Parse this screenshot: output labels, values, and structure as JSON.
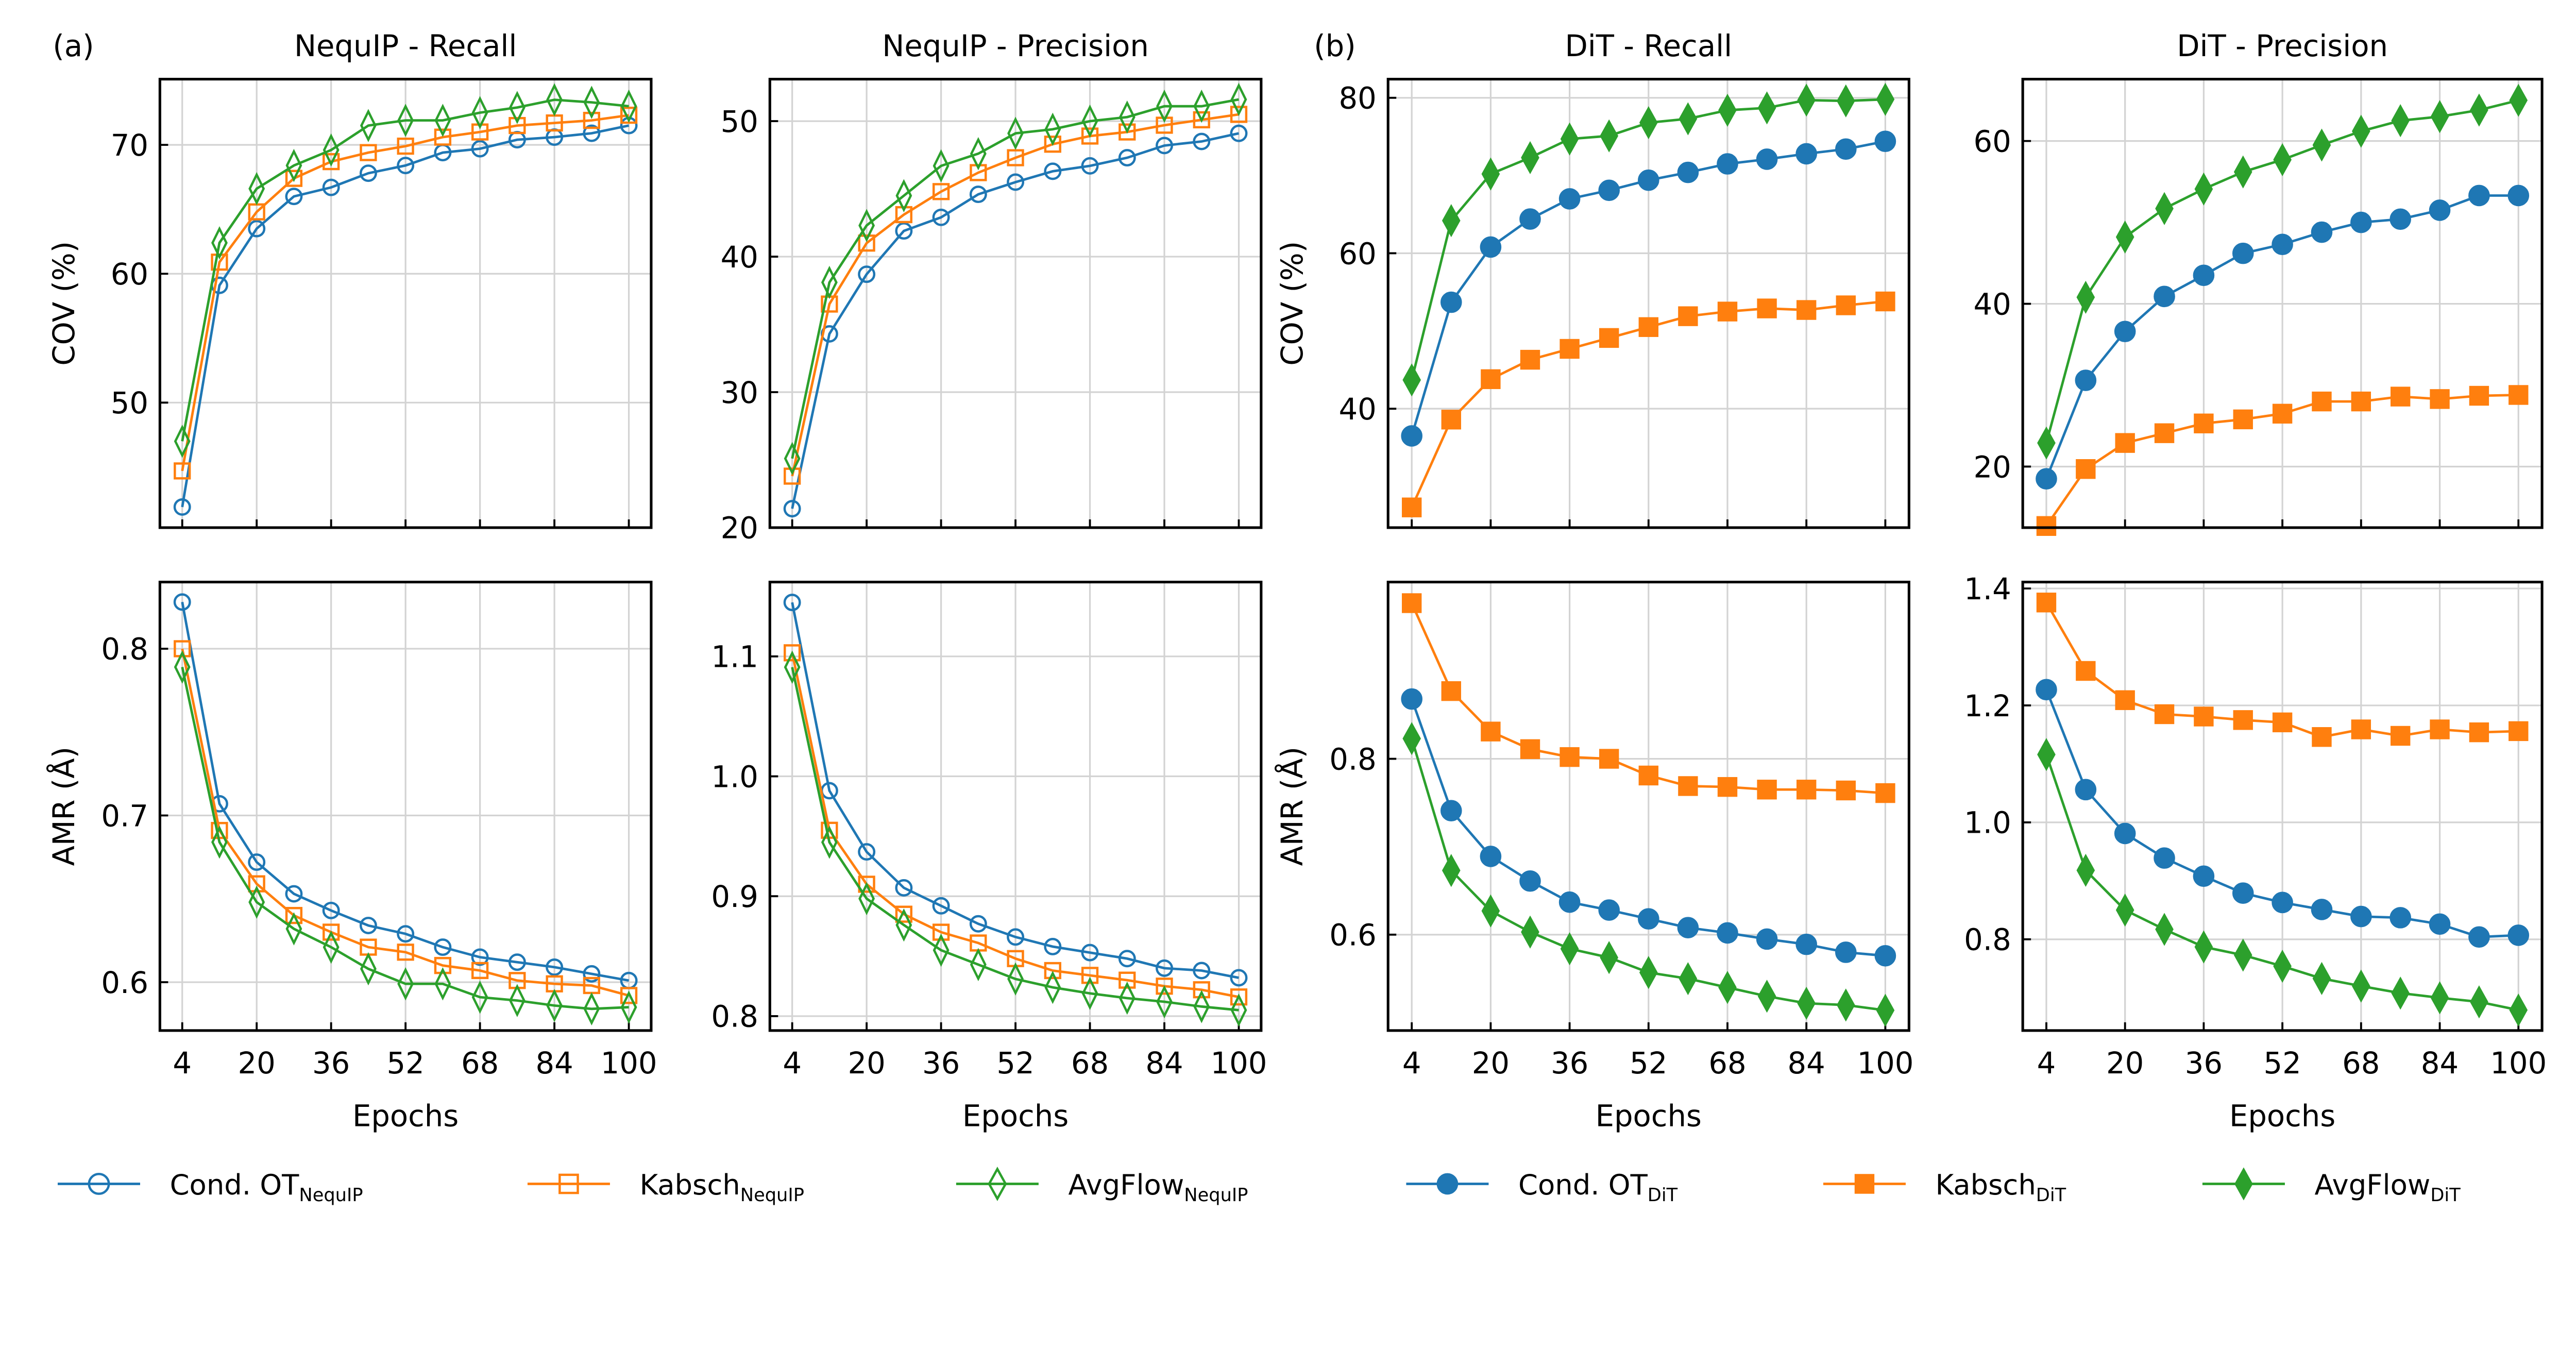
{
  "figure": {
    "panel_labels": [
      "(a)",
      "(b)"
    ],
    "colors": {
      "cond_ot": "#1f77b4",
      "kabsch": "#ff7f0e",
      "avgflow": "#2ca02c",
      "grid": "#d3d3d3"
    }
  },
  "legend": {
    "placement": "bottom",
    "entries": [
      {
        "label": "Cond. OT",
        "subscript": "NequIP",
        "color": "#1f77b4",
        "marker": "circle",
        "filled": false
      },
      {
        "label": "Kabsch",
        "subscript": "NequIP",
        "color": "#ff7f0e",
        "marker": "square",
        "filled": false
      },
      {
        "label": "AvgFlow",
        "subscript": "NequIP",
        "color": "#2ca02c",
        "marker": "thin-diamond",
        "filled": false
      },
      {
        "label": "Cond. OT",
        "subscript": "DiT",
        "color": "#1f77b4",
        "marker": "circle",
        "filled": true
      },
      {
        "label": "Kabsch",
        "subscript": "DiT",
        "color": "#ff7f0e",
        "marker": "square",
        "filled": true
      },
      {
        "label": "AvgFlow",
        "subscript": "DiT",
        "color": "#2ca02c",
        "marker": "thin-diamond",
        "filled": true
      }
    ]
  },
  "chart_data": [
    {
      "type": "line",
      "title": "NequIP - Recall",
      "xlabel": "",
      "ylabel": "COV (%)",
      "grid": true,
      "x": [
        4,
        12,
        20,
        28,
        36,
        44,
        52,
        60,
        68,
        76,
        84,
        92,
        100
      ],
      "xticks": [
        "4",
        "20",
        "36",
        "52",
        "68",
        "84",
        "100"
      ],
      "show_xticklabels": false,
      "yticks": [
        "50",
        "60",
        "70"
      ],
      "ylim": [
        40.3,
        75.1
      ],
      "filled": false,
      "series": [
        {
          "legend": 0,
          "values": [
            41.9,
            59.1,
            63.5,
            66.0,
            66.7,
            67.8,
            68.4,
            69.4,
            69.7,
            70.4,
            70.6,
            70.9,
            71.5
          ]
        },
        {
          "legend": 1,
          "values": [
            44.7,
            60.9,
            64.8,
            67.4,
            68.7,
            69.4,
            69.9,
            70.6,
            71.0,
            71.5,
            71.7,
            71.9,
            72.3
          ]
        },
        {
          "legend": 2,
          "values": [
            47.0,
            62.4,
            66.6,
            68.4,
            69.6,
            71.5,
            71.9,
            71.9,
            72.5,
            72.9,
            73.5,
            73.3,
            73.0
          ]
        }
      ]
    },
    {
      "type": "line",
      "title": "NequIP - Precision",
      "xlabel": "",
      "ylabel": "",
      "grid": true,
      "x": [
        4,
        12,
        20,
        28,
        36,
        44,
        52,
        60,
        68,
        76,
        84,
        92,
        100
      ],
      "xticks": [
        "4",
        "20",
        "36",
        "52",
        "68",
        "84",
        "100"
      ],
      "show_xticklabels": false,
      "yticks": [
        "20",
        "30",
        "40",
        "50"
      ],
      "ylim": [
        20,
        53.1
      ],
      "filled": false,
      "series": [
        {
          "legend": 0,
          "values": [
            21.4,
            34.3,
            38.7,
            41.9,
            42.9,
            44.6,
            45.5,
            46.3,
            46.7,
            47.3,
            48.2,
            48.5,
            49.1
          ]
        },
        {
          "legend": 1,
          "values": [
            23.8,
            36.5,
            41.0,
            43.1,
            44.8,
            46.2,
            47.3,
            48.3,
            48.9,
            49.2,
            49.7,
            50.1,
            50.5
          ]
        },
        {
          "legend": 2,
          "values": [
            25.1,
            38.1,
            42.3,
            44.5,
            46.7,
            47.6,
            49.1,
            49.4,
            50.0,
            50.3,
            51.1,
            51.1,
            51.6
          ]
        }
      ]
    },
    {
      "type": "line",
      "title": "DiT - Recall",
      "xlabel": "",
      "ylabel": "COV (%)",
      "grid": true,
      "x": [
        4,
        12,
        20,
        28,
        36,
        44,
        52,
        60,
        68,
        76,
        84,
        92,
        100
      ],
      "xticks": [
        "4",
        "20",
        "36",
        "52",
        "68",
        "84",
        "100"
      ],
      "show_xticklabels": false,
      "yticks": [
        "40",
        "60",
        "80"
      ],
      "ylim": [
        24.7,
        82.4
      ],
      "filled": true,
      "series": [
        {
          "legend": 3,
          "values": [
            36.5,
            53.7,
            60.8,
            64.4,
            67.0,
            68.1,
            69.4,
            70.4,
            71.5,
            72.1,
            72.8,
            73.4,
            74.4
          ]
        },
        {
          "legend": 4,
          "values": [
            27.3,
            38.6,
            43.8,
            46.3,
            47.7,
            49.1,
            50.5,
            51.9,
            52.5,
            52.9,
            52.7,
            53.3,
            53.8
          ]
        },
        {
          "legend": 5,
          "values": [
            43.7,
            64.2,
            70.2,
            72.3,
            74.7,
            75.1,
            76.8,
            77.3,
            78.4,
            78.7,
            79.7,
            79.6,
            79.8
          ]
        }
      ]
    },
    {
      "type": "line",
      "title": "DiT - Precision",
      "xlabel": "",
      "ylabel": "",
      "grid": true,
      "x": [
        4,
        12,
        20,
        28,
        36,
        44,
        52,
        60,
        68,
        76,
        84,
        92,
        100
      ],
      "xticks": [
        "4",
        "20",
        "36",
        "52",
        "68",
        "84",
        "100"
      ],
      "show_xticklabels": false,
      "yticks": [
        "20",
        "40",
        "60"
      ],
      "ylim": [
        12.5,
        67.6
      ],
      "filled": true,
      "series": [
        {
          "legend": 3,
          "values": [
            18.5,
            30.6,
            36.6,
            40.9,
            43.5,
            46.2,
            47.3,
            48.8,
            50.0,
            50.4,
            51.5,
            53.3,
            53.3
          ]
        },
        {
          "legend": 4,
          "values": [
            12.7,
            19.7,
            22.9,
            24.1,
            25.3,
            25.8,
            26.5,
            28.0,
            28.0,
            28.6,
            28.3,
            28.7,
            28.8
          ]
        },
        {
          "legend": 5,
          "values": [
            22.9,
            40.8,
            48.2,
            51.7,
            54.1,
            56.2,
            57.7,
            59.5,
            61.2,
            62.5,
            63.0,
            63.8,
            65.0
          ]
        }
      ]
    },
    {
      "type": "line",
      "title": "",
      "xlabel": "Epochs",
      "ylabel": "AMR (Å)",
      "grid": true,
      "x": [
        4,
        12,
        20,
        28,
        36,
        44,
        52,
        60,
        68,
        76,
        84,
        92,
        100
      ],
      "xticks": [
        "4",
        "20",
        "36",
        "52",
        "68",
        "84",
        "100"
      ],
      "show_xticklabels": true,
      "yticks": [
        "0.6",
        "0.7",
        "0.8"
      ],
      "ylim": [
        0.571,
        0.84
      ],
      "filled": false,
      "series": [
        {
          "legend": 0,
          "values": [
            0.828,
            0.707,
            0.672,
            0.653,
            0.643,
            0.634,
            0.629,
            0.621,
            0.615,
            0.612,
            0.609,
            0.605,
            0.601
          ]
        },
        {
          "legend": 1,
          "values": [
            0.8,
            0.691,
            0.659,
            0.64,
            0.63,
            0.621,
            0.618,
            0.61,
            0.607,
            0.601,
            0.599,
            0.598,
            0.592
          ]
        },
        {
          "legend": 2,
          "values": [
            0.789,
            0.684,
            0.648,
            0.632,
            0.621,
            0.608,
            0.599,
            0.599,
            0.591,
            0.589,
            0.586,
            0.584,
            0.585
          ]
        }
      ]
    },
    {
      "type": "line",
      "title": "",
      "xlabel": "Epochs",
      "ylabel": "",
      "grid": true,
      "x": [
        4,
        12,
        20,
        28,
        36,
        44,
        52,
        60,
        68,
        76,
        84,
        92,
        100
      ],
      "xticks": [
        "4",
        "20",
        "36",
        "52",
        "68",
        "84",
        "100"
      ],
      "show_xticklabels": true,
      "yticks": [
        "0.8",
        "0.9",
        "1.0",
        "1.1"
      ],
      "ylim": [
        0.788,
        1.162
      ],
      "filled": false,
      "series": [
        {
          "legend": 0,
          "values": [
            1.145,
            0.988,
            0.937,
            0.907,
            0.892,
            0.877,
            0.866,
            0.858,
            0.853,
            0.848,
            0.84,
            0.838,
            0.832
          ]
        },
        {
          "legend": 1,
          "values": [
            1.103,
            0.955,
            0.91,
            0.885,
            0.87,
            0.861,
            0.848,
            0.838,
            0.834,
            0.83,
            0.825,
            0.822,
            0.816
          ]
        },
        {
          "legend": 2,
          "values": [
            1.091,
            0.945,
            0.898,
            0.876,
            0.855,
            0.843,
            0.831,
            0.824,
            0.819,
            0.815,
            0.812,
            0.808,
            0.805
          ]
        }
      ]
    },
    {
      "type": "line",
      "title": "",
      "xlabel": "Epochs",
      "ylabel": "AMR (Å)",
      "grid": true,
      "x": [
        4,
        12,
        20,
        28,
        36,
        44,
        52,
        60,
        68,
        76,
        84,
        92,
        100
      ],
      "xticks": [
        "4",
        "20",
        "36",
        "52",
        "68",
        "84",
        "100"
      ],
      "show_xticklabels": true,
      "yticks": [
        "0.6",
        "0.8"
      ],
      "ylim": [
        0.491,
        1.001
      ],
      "filled": true,
      "series": [
        {
          "legend": 3,
          "values": [
            0.868,
            0.741,
            0.689,
            0.661,
            0.637,
            0.628,
            0.618,
            0.608,
            0.602,
            0.595,
            0.589,
            0.58,
            0.576
          ]
        },
        {
          "legend": 4,
          "values": [
            0.977,
            0.877,
            0.831,
            0.811,
            0.802,
            0.8,
            0.781,
            0.769,
            0.768,
            0.765,
            0.765,
            0.764,
            0.761
          ]
        },
        {
          "legend": 5,
          "values": [
            0.823,
            0.673,
            0.627,
            0.603,
            0.584,
            0.574,
            0.557,
            0.55,
            0.54,
            0.53,
            0.522,
            0.52,
            0.514
          ]
        }
      ]
    },
    {
      "type": "line",
      "title": "",
      "xlabel": "Epochs",
      "ylabel": "",
      "grid": true,
      "x": [
        4,
        12,
        20,
        28,
        36,
        44,
        52,
        60,
        68,
        76,
        84,
        92,
        100
      ],
      "xticks": [
        "4",
        "20",
        "36",
        "52",
        "68",
        "84",
        "100"
      ],
      "show_xticklabels": true,
      "yticks": [
        "0.8",
        "1.0",
        "1.2",
        "1.4"
      ],
      "ylim": [
        0.644,
        1.411
      ],
      "filled": true,
      "series": [
        {
          "legend": 3,
          "values": [
            1.227,
            1.056,
            0.981,
            0.939,
            0.908,
            0.879,
            0.863,
            0.851,
            0.839,
            0.837,
            0.826,
            0.804,
            0.807
          ]
        },
        {
          "legend": 4,
          "values": [
            1.376,
            1.259,
            1.209,
            1.185,
            1.181,
            1.175,
            1.171,
            1.146,
            1.159,
            1.148,
            1.159,
            1.154,
            1.156
          ]
        },
        {
          "legend": 5,
          "values": [
            1.116,
            0.918,
            0.85,
            0.817,
            0.787,
            0.773,
            0.754,
            0.733,
            0.72,
            0.708,
            0.7,
            0.693,
            0.679
          ]
        }
      ]
    }
  ]
}
